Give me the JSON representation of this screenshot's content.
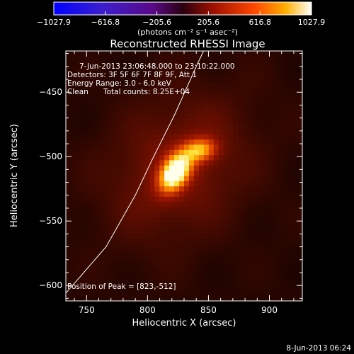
{
  "colorbar": {
    "tick_labels": [
      "−1027.9",
      "−616.8",
      "−205.6",
      "205.6",
      "616.8",
      "1027.9"
    ],
    "tick_values": [
      -1027.9,
      -616.8,
      -205.6,
      205.6,
      616.8,
      1027.9
    ],
    "range": [
      -1027.9,
      1027.9
    ],
    "units_label": "(photons cm⁻² s⁻¹ asec⁻²)"
  },
  "info": {
    "time_range": "7-Jun-2013 23:06:48.000 to 23:10:22.000",
    "detectors": "Detectors: 3F 5F 6F 7F 8F 9F, Att 1",
    "energy": "Energy Range: 3.0 - 6.0 keV",
    "algorithm": "Clean",
    "total_counts": "Total counts: 8.25E+04",
    "peak_position": "Position of Peak = [823,-512]"
  },
  "footer_timestamp": "8-Jun-2013 06:24",
  "chart_data": {
    "type": "heatmap",
    "title": "Reconstructed RHESSI Image",
    "xlabel": "Heliocentric X (arcsec)",
    "ylabel": "Heliocentric Y (arcsec)",
    "xlim": [
      733,
      927
    ],
    "ylim": [
      -612,
      -418
    ],
    "xticks": [
      750,
      800,
      850,
      900
    ],
    "yticks": [
      -450,
      -500,
      -550,
      -600
    ],
    "xtick_labels": [
      "750",
      "800",
      "850",
      "900"
    ],
    "ytick_labels": [
      "−450",
      "−500",
      "−550",
      "−600"
    ],
    "colormap": "red-temperature",
    "sources": [
      {
        "x": 823,
        "y": -512,
        "amplitude": 1.0,
        "sigma_major": 11,
        "sigma_minor": 7,
        "angle_deg": 55
      },
      {
        "x": 843,
        "y": -495,
        "amplitude": 0.55,
        "sigma_major": 9,
        "sigma_minor": 6,
        "angle_deg": 10
      },
      {
        "x": 825,
        "y": -508,
        "amplitude": 0.25,
        "sigma_major": 45,
        "sigma_minor": 35,
        "angle_deg": 40
      }
    ],
    "limb_curve": [
      [
        733,
        -606
      ],
      [
        766,
        -570
      ],
      [
        790,
        -530
      ],
      [
        805,
        -500
      ],
      [
        822,
        -468
      ],
      [
        840,
        -430
      ],
      [
        846,
        -418
      ]
    ],
    "peak": {
      "x": 823,
      "y": -512
    }
  }
}
